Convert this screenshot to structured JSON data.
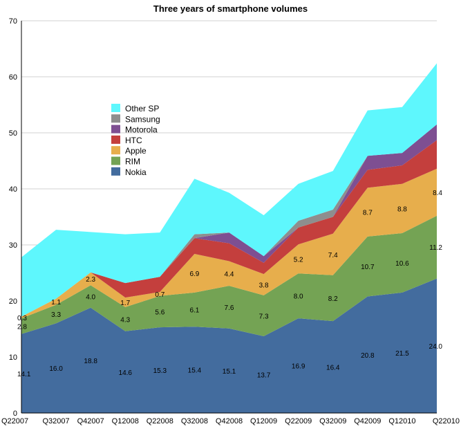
{
  "chart_data": {
    "type": "area",
    "title": "Three years of smartphone volumes",
    "xlabel": "",
    "ylabel": "",
    "ylim": [
      0,
      70
    ],
    "yticks": [
      0,
      10,
      20,
      30,
      40,
      50,
      60,
      70
    ],
    "grid": true,
    "legend_position": "left-middle",
    "stacked": true,
    "categories": [
      "Q22007",
      "Q32007",
      "Q42007",
      "Q12008",
      "Q22008",
      "Q32008",
      "Q42008",
      "Q12009",
      "Q22009",
      "Q32009",
      "Q42009",
      "Q12010",
      "Q22010"
    ],
    "series": [
      {
        "name": "Nokia",
        "color": "#436c9e",
        "values": [
          14.1,
          16.0,
          18.8,
          14.6,
          15.3,
          15.4,
          15.1,
          13.7,
          16.9,
          16.4,
          20.8,
          21.5,
          24.0
        ]
      },
      {
        "name": "RIM",
        "color": "#74a354",
        "values": [
          2.8,
          3.3,
          4.0,
          4.3,
          5.6,
          6.1,
          7.6,
          7.3,
          8.0,
          8.2,
          10.7,
          10.6,
          11.2
        ]
      },
      {
        "name": "Apple",
        "color": "#e7ae4c",
        "values": [
          0.3,
          1.1,
          2.3,
          1.7,
          0.7,
          6.9,
          4.4,
          3.8,
          5.2,
          7.4,
          8.7,
          8.8,
          8.4
        ]
      },
      {
        "name": "HTC",
        "color": "#c43f3d",
        "values": [
          0,
          0,
          0,
          2.6,
          2.7,
          2.8,
          3.2,
          2.0,
          3.0,
          3.0,
          3.2,
          3.3,
          5.1
        ]
      },
      {
        "name": "Motorola",
        "color": "#7e4f92",
        "values": [
          0,
          0,
          0,
          0,
          0,
          0,
          1.9,
          1.2,
          0,
          0,
          2.5,
          2.2,
          2.8
        ]
      },
      {
        "name": "Samsung",
        "color": "#8e8e8e",
        "values": [
          0,
          0,
          0,
          0,
          0,
          0.7,
          0,
          0,
          1.2,
          1.3,
          0,
          0,
          0
        ]
      },
      {
        "name": "Other SP",
        "color": "#5ef7fd",
        "values": [
          10.6,
          12.3,
          7.2,
          8.7,
          7.9,
          9.9,
          7.1,
          7.3,
          6.6,
          6.9,
          8.1,
          8.2,
          10.9
        ]
      }
    ],
    "labeled_series": [
      "Nokia",
      "RIM",
      "Apple"
    ],
    "legend_order": [
      "Other SP",
      "Samsung",
      "Motorola",
      "HTC",
      "Apple",
      "RIM",
      "Nokia"
    ]
  }
}
